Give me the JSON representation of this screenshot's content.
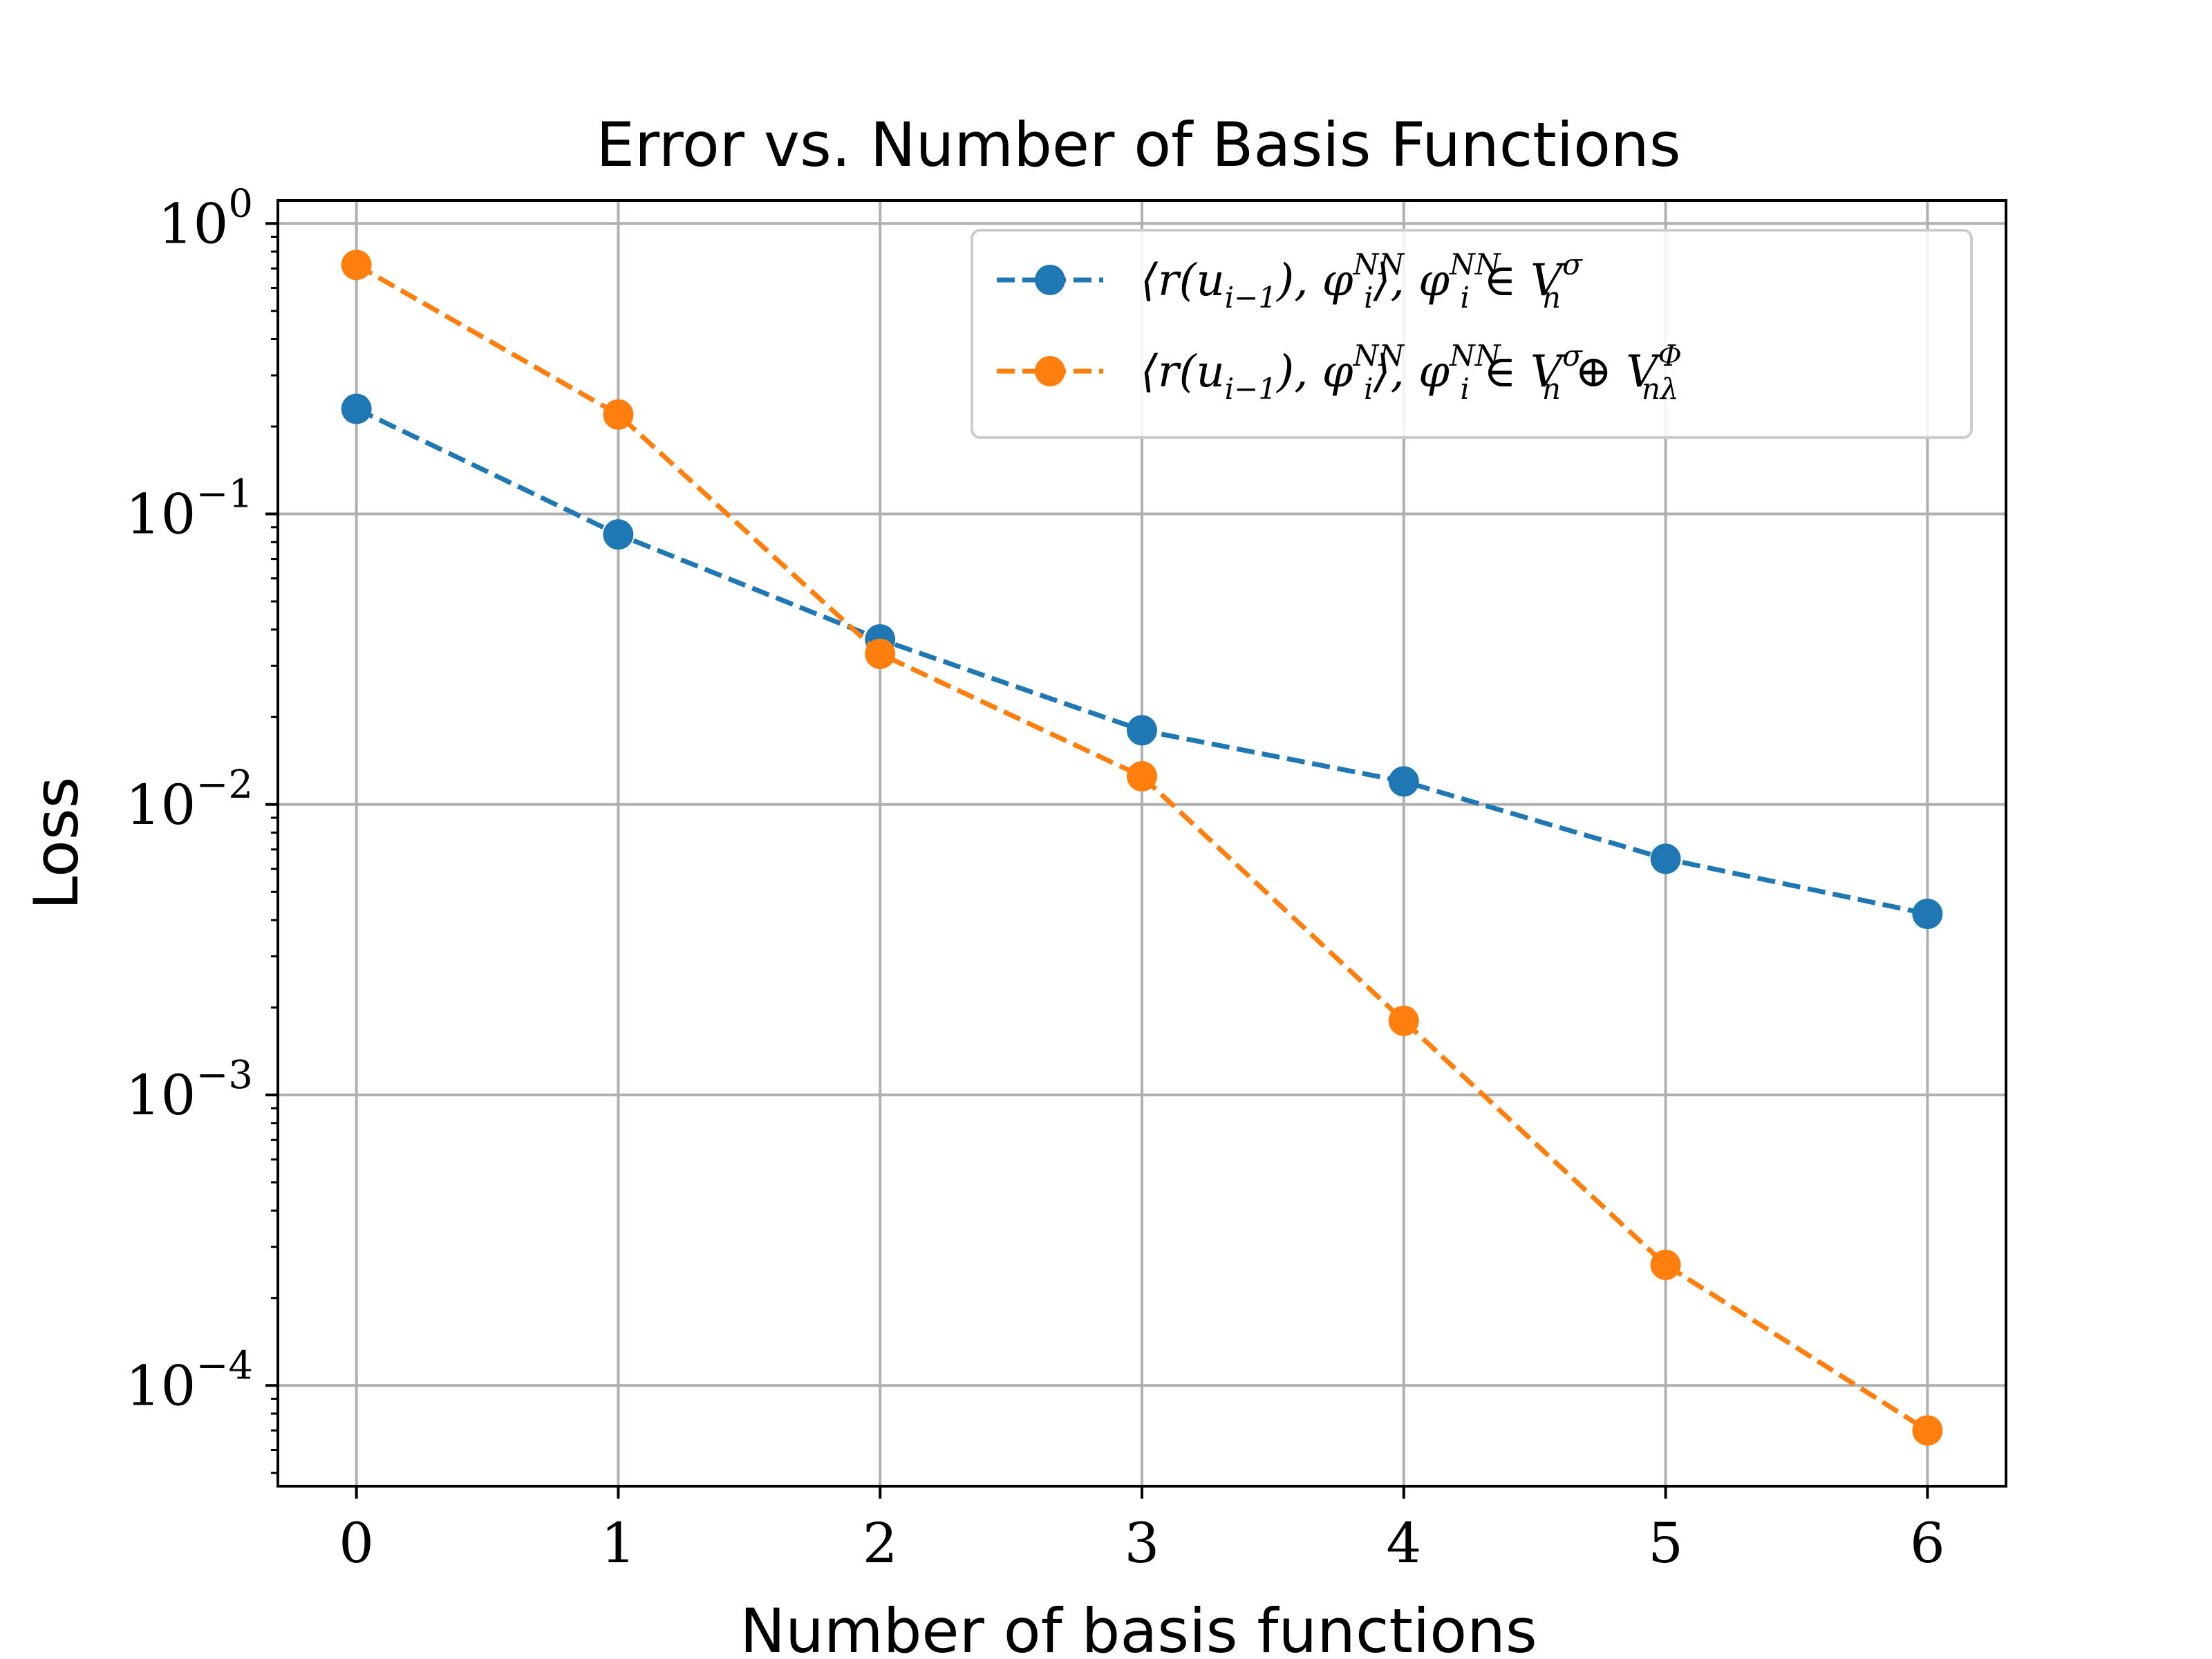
{
  "chart_data": {
    "type": "line",
    "title": "Error vs. Number of Basis Functions",
    "xlabel": "Number of basis functions",
    "ylabel": "Loss",
    "yscale": "log",
    "x": [
      0,
      1,
      2,
      3,
      4,
      5,
      6
    ],
    "xlim": [
      -0.3,
      6.3
    ],
    "ylim": [
      4.5e-05,
      1.2
    ],
    "xticks": [
      "0",
      "1",
      "2",
      "3",
      "4",
      "5",
      "6"
    ],
    "yticks": [
      {
        "base": "10",
        "exp": "0",
        "value": 1
      },
      {
        "base": "10",
        "exp": "−1",
        "value": 0.1
      },
      {
        "base": "10",
        "exp": "−2",
        "value": 0.01
      },
      {
        "base": "10",
        "exp": "−3",
        "value": 0.001
      },
      {
        "base": "10",
        "exp": "−4",
        "value": 0.0001
      }
    ],
    "grid": true,
    "legend_position": "top-right",
    "series": [
      {
        "name": "⟨r(u_{i−1}), φ_i^{NN}⟩, φ_i^{NN} ∈ V_n^σ",
        "legend_main": "⟨r(u",
        "legend_sub1": "i−1",
        "legend_mid": "), φ",
        "legend_sub2": "i",
        "legend_sup2": "NN",
        "legend_mid2": "⟩, φ",
        "legend_sub3": "i",
        "legend_sup3": "NN",
        "legend_mid3": " ∈ V",
        "legend_sub4": "n",
        "legend_sup4": "σ",
        "legend_tail": "",
        "legend_sub5": "",
        "legend_sup5": "",
        "color": "#1f77b4",
        "values": [
          0.23,
          0.085,
          0.037,
          0.018,
          0.012,
          0.0065,
          0.0042
        ]
      },
      {
        "name": "⟨r(u_{i−1}), φ_i^{NN}⟩, φ_i^{NN} ∈ V_n^σ ⊕ V_{n_λ}^Φ",
        "legend_main": "⟨r(u",
        "legend_sub1": "i−1",
        "legend_mid": "), φ",
        "legend_sub2": "i",
        "legend_sup2": "NN",
        "legend_mid2": "⟩, φ",
        "legend_sub3": "i",
        "legend_sup3": "NN",
        "legend_mid3": " ∈ V",
        "legend_sub4": "n",
        "legend_sup4": "σ",
        "legend_tail": " ⊕ V",
        "legend_sub5": "nλ",
        "legend_sup5": "Φ",
        "color": "#ff7f0e",
        "values": [
          0.72,
          0.22,
          0.033,
          0.0125,
          0.0018,
          0.00026,
          7e-05
        ]
      }
    ]
  }
}
